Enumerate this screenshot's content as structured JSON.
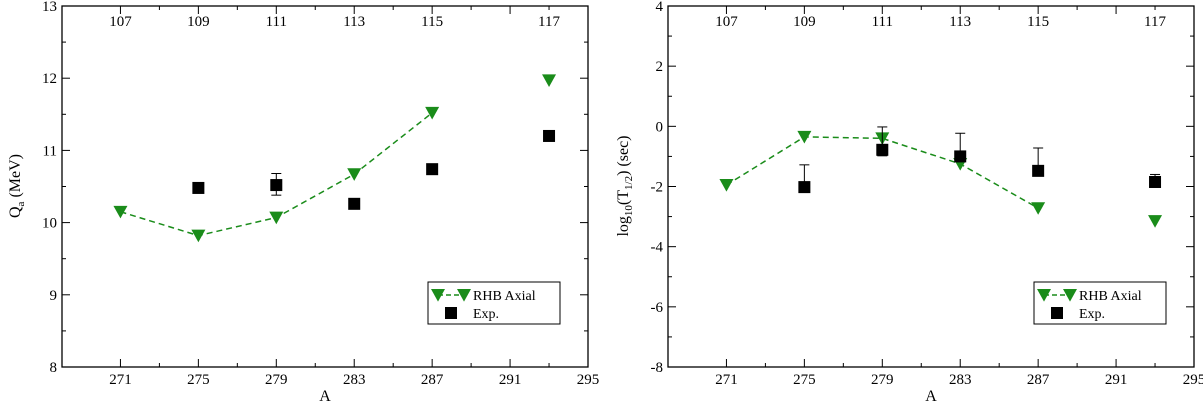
{
  "colors": {
    "theory": "#1a8c1a",
    "exp": "#000000"
  },
  "chart_data": [
    {
      "type": "scatter",
      "xlabel": "A",
      "ylabel_main": "Q",
      "ylabel_sub": "a",
      "ylabel_unit": " (MeV)",
      "xlim": [
        268,
        295
      ],
      "ylim": [
        8,
        13
      ],
      "x_ticks": [
        271,
        275,
        279,
        283,
        287,
        291,
        295
      ],
      "y_ticks": [
        8,
        9,
        10,
        11,
        12,
        13
      ],
      "top_labels": [
        {
          "x": 271,
          "label": "107"
        },
        {
          "x": 275,
          "label": "109"
        },
        {
          "x": 279,
          "label": "111"
        },
        {
          "x": 283,
          "label": "113"
        },
        {
          "x": 287,
          "label": "115"
        },
        {
          "x": 293,
          "label": "117"
        }
      ],
      "legend_position": "lower-right",
      "series": [
        {
          "name": "RHB Axial",
          "marker": "triangle-down",
          "connected": true,
          "points": [
            [
              271,
              10.15
            ],
            [
              275,
              9.82
            ],
            [
              279,
              10.07
            ],
            [
              283,
              10.67
            ],
            [
              287,
              11.52
            ],
            [
              293,
              11.97
            ]
          ],
          "line_points": 5
        },
        {
          "name": "Exp.",
          "marker": "square",
          "connected": false,
          "points": [
            [
              275,
              10.48
            ],
            [
              279,
              10.52
            ],
            [
              283,
              10.26
            ],
            [
              287,
              10.74
            ],
            [
              293,
              11.2
            ]
          ],
          "errors": [
            null,
            [
              10.38,
              10.68
            ],
            null,
            null,
            null
          ]
        }
      ]
    },
    {
      "type": "scatter",
      "xlabel": "A",
      "ylabel_main": "log",
      "ylabel_sub": "10",
      "ylabel_mid": "(T",
      "ylabel_sub2": "1/2",
      "ylabel_unit": ") (sec)",
      "xlim": [
        268,
        295
      ],
      "ylim": [
        -8,
        4
      ],
      "x_ticks": [
        271,
        275,
        279,
        283,
        287,
        291,
        295
      ],
      "y_ticks": [
        -8,
        -6,
        -4,
        -2,
        0,
        2,
        4
      ],
      "top_labels": [
        {
          "x": 271,
          "label": "107"
        },
        {
          "x": 275,
          "label": "109"
        },
        {
          "x": 279,
          "label": "111"
        },
        {
          "x": 283,
          "label": "113"
        },
        {
          "x": 287,
          "label": "115"
        },
        {
          "x": 293,
          "label": "117"
        }
      ],
      "legend_position": "lower-right",
      "series": [
        {
          "name": "RHB Axial",
          "marker": "triangle-down",
          "connected": true,
          "points": [
            [
              271,
              -1.95
            ],
            [
              275,
              -0.35
            ],
            [
              279,
              -0.4
            ],
            [
              283,
              -1.25
            ],
            [
              287,
              -2.72
            ],
            [
              293,
              -3.15
            ]
          ],
          "line_points": 5
        },
        {
          "name": "Exp.",
          "marker": "square",
          "connected": false,
          "points": [
            [
              275,
              -2.02
            ],
            [
              279,
              -0.78
            ],
            [
              283,
              -1.0
            ],
            [
              287,
              -1.48
            ],
            [
              293,
              -1.85
            ]
          ],
          "errors": [
            [
              -2.2,
              -1.28
            ],
            [
              -0.98,
              -0.02
            ],
            [
              -1.15,
              -0.23
            ],
            [
              -1.6,
              -0.72
            ],
            [
              -1.95,
              -1.6
            ]
          ]
        }
      ]
    }
  ]
}
